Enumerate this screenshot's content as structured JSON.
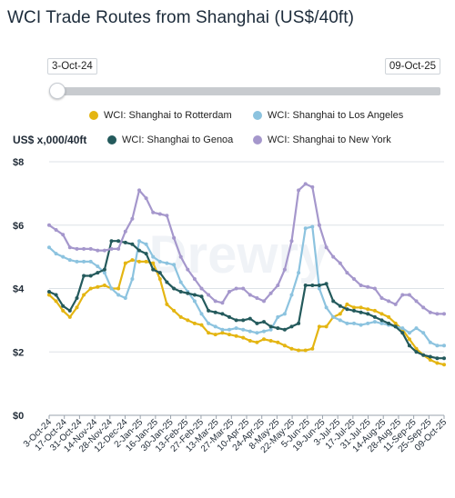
{
  "title": "WCI Trade Routes from Shanghai (US$/40ft)",
  "slider": {
    "start_label": "3-Oct-24",
    "end_label": "09-Oct-25"
  },
  "ylabel": "US$ x,000/40ft",
  "watermark": "Drewry",
  "colors": {
    "rotterdam": "#e4b512",
    "losangeles": "#8cc3df",
    "genoa": "#245a5c",
    "newyork": "#a597cc"
  },
  "chart_data": {
    "type": "line",
    "title": "WCI Trade Routes from Shanghai (US$/40ft)",
    "ylabel": "US$ x,000/40ft",
    "ylim": [
      0,
      8
    ],
    "yticks": [
      {
        "value": 0,
        "label": "$0"
      },
      {
        "value": 2,
        "label": "$2"
      },
      {
        "value": 4,
        "label": "$4"
      },
      {
        "value": 6,
        "label": "$6"
      },
      {
        "value": 8,
        "label": "$8"
      }
    ],
    "x_tick_labels": [
      "3-Oct-24",
      "17-Oct-24",
      "31-Oct-24",
      "14-Nov-24",
      "28-Nov-24",
      "12-Dec-24",
      "2-Jan-25",
      "16-Jan-25",
      "30-Jan-25",
      "13-Feb-25",
      "27-Feb-25",
      "13-Mar-25",
      "27-Mar-25",
      "10-Apr-25",
      "24-Apr-25",
      "8-May-25",
      "22-May-25",
      "5-Jun-25",
      "19-Jun-25",
      "3-Jul-25",
      "17-Jul-25",
      "31-Jul-25",
      "14-Aug-25",
      "28-Aug-25",
      "11-Sep-25",
      "25-Sep-25",
      "09-Oct-25"
    ],
    "grid": true,
    "series": [
      {
        "name": "WCI: Shanghai to Rotterdam",
        "values": [
          3.8,
          3.6,
          3.3,
          3.1,
          3.4,
          3.8,
          4.0,
          4.05,
          4.1,
          4.0,
          4.0,
          4.8,
          4.9,
          4.85,
          4.85,
          4.8,
          4.3,
          3.5,
          3.3,
          3.1,
          3.0,
          2.9,
          2.85,
          2.6,
          2.55,
          2.6,
          2.55,
          2.5,
          2.45,
          2.35,
          2.3,
          2.4,
          2.35,
          2.3,
          2.2,
          2.1,
          2.05,
          2.05,
          2.1,
          2.8,
          2.8,
          3.1,
          3.2,
          3.5,
          3.4,
          3.4,
          3.35,
          3.3,
          3.2,
          3.1,
          2.9,
          2.7,
          2.4,
          2.1,
          1.9,
          1.75,
          1.65,
          1.6
        ]
      },
      {
        "name": "WCI: Shanghai to Los Angeles",
        "values": [
          5.3,
          5.1,
          5.0,
          4.9,
          4.85,
          4.85,
          4.85,
          4.7,
          4.5,
          4.0,
          3.8,
          3.7,
          4.3,
          5.5,
          5.4,
          5.0,
          4.85,
          4.8,
          4.75,
          4.2,
          3.9,
          3.6,
          3.2,
          2.9,
          2.8,
          2.7,
          2.7,
          2.75,
          2.7,
          2.65,
          2.6,
          2.65,
          2.7,
          3.1,
          3.2,
          3.8,
          4.5,
          5.9,
          5.95,
          4.0,
          3.4,
          3.1,
          3.0,
          2.9,
          2.9,
          2.85,
          2.9,
          2.95,
          2.9,
          2.85,
          2.8,
          2.75,
          2.6,
          2.75,
          2.6,
          2.3,
          2.2,
          2.2
        ]
      },
      {
        "name": "WCI: Shanghai to Genoa",
        "values": [
          3.9,
          3.8,
          3.45,
          3.3,
          3.7,
          4.4,
          4.4,
          4.5,
          4.6,
          5.5,
          5.5,
          5.45,
          5.4,
          5.2,
          5.1,
          4.6,
          4.5,
          4.2,
          4.0,
          3.9,
          3.85,
          3.8,
          3.75,
          3.3,
          3.25,
          3.2,
          3.1,
          3.0,
          3.0,
          3.05,
          2.9,
          2.95,
          2.8,
          2.75,
          2.7,
          2.8,
          2.9,
          4.1,
          4.1,
          4.1,
          4.15,
          3.6,
          3.45,
          3.35,
          3.3,
          3.25,
          3.2,
          3.1,
          3.0,
          2.9,
          2.8,
          2.6,
          2.2,
          2.0,
          1.9,
          1.85,
          1.8,
          1.8
        ]
      },
      {
        "name": "WCI: Shanghai to New York",
        "values": [
          6.0,
          5.85,
          5.7,
          5.3,
          5.25,
          5.25,
          5.25,
          5.2,
          5.2,
          5.25,
          5.25,
          5.8,
          6.2,
          7.1,
          6.85,
          6.4,
          6.35,
          6.3,
          5.6,
          5.0,
          4.6,
          4.3,
          4.0,
          3.8,
          3.6,
          3.55,
          3.9,
          4.0,
          4.0,
          3.8,
          3.7,
          3.6,
          3.85,
          4.1,
          4.6,
          5.5,
          7.1,
          7.3,
          7.2,
          6.0,
          5.3,
          5.0,
          4.8,
          4.5,
          4.3,
          4.1,
          4.05,
          4.0,
          3.7,
          3.6,
          3.5,
          3.8,
          3.8,
          3.6,
          3.4,
          3.25,
          3.2,
          3.2
        ]
      }
    ]
  }
}
